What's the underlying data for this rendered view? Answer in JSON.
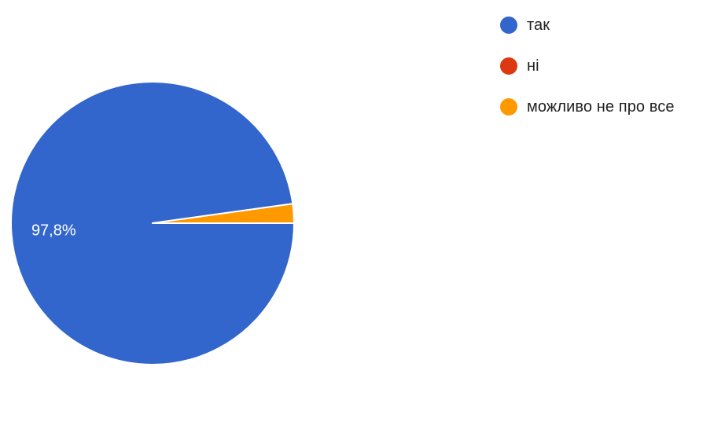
{
  "chart_data": {
    "type": "pie",
    "slices": [
      {
        "label": "так",
        "value": 97.8,
        "color": "#3366cc",
        "data_label": "97,8%"
      },
      {
        "label": "ні",
        "value": 0.0,
        "color": "#dc3912",
        "data_label": ""
      },
      {
        "label": "можливо не про все",
        "value": 2.2,
        "color": "#ff9900",
        "data_label": ""
      }
    ],
    "legend_position": "top-right"
  },
  "legend": {
    "items": [
      {
        "label": "так",
        "color": "#3366cc"
      },
      {
        "label": "ні",
        "color": "#dc3912"
      },
      {
        "label": "можливо не про все",
        "color": "#ff9900"
      }
    ]
  }
}
